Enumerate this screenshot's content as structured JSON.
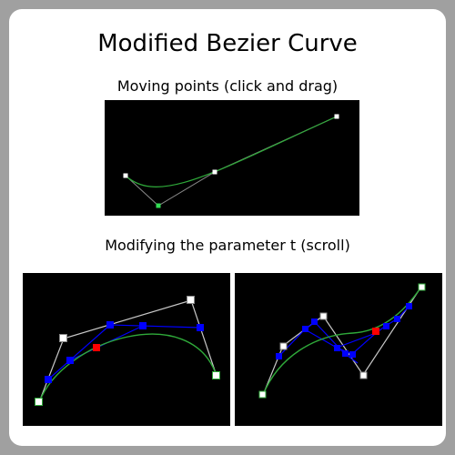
{
  "page": {
    "title": "Modified Bezier Curve",
    "subtitle_moving": "Moving points (click and drag)",
    "subtitle_parameter": "Modifying the parameter t (scroll)"
  },
  "colors": {
    "background": "#a0a0a0",
    "card": "#ffffff",
    "panel": "#000000",
    "curve": "#2faa3a",
    "control_line": "#c8c8c8",
    "intermediate": "#0000ff",
    "result_point": "#ff0000",
    "control_point": "#ffffff"
  }
}
